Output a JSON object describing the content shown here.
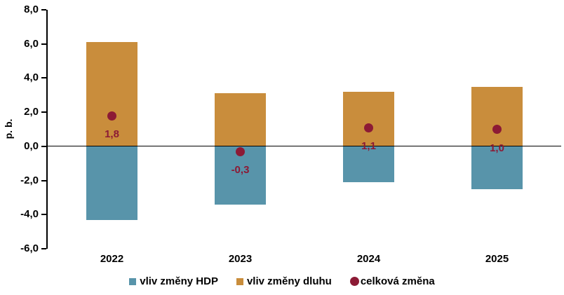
{
  "chart_data": {
    "type": "bar",
    "subtype": "bar-with-points",
    "categories": [
      "2022",
      "2023",
      "2024",
      "2025"
    ],
    "series": [
      {
        "name": "vliv změny HDP",
        "marker": "square",
        "render": "bar",
        "color": "#5894AA",
        "values": [
          -4.3,
          -3.4,
          -2.1,
          -2.5
        ]
      },
      {
        "name": "vliv změny dluhu",
        "marker": "square",
        "render": "bar",
        "color": "#C98D3C",
        "values": [
          6.1,
          3.1,
          3.2,
          3.5
        ]
      },
      {
        "name": "celková změna",
        "marker": "circle",
        "render": "point",
        "color": "#8C1A35",
        "values": [
          1.8,
          -0.3,
          1.1,
          1.0
        ],
        "point_labels": [
          "1,8",
          "-0,3",
          "1,1",
          "1,0"
        ]
      }
    ],
    "title": "",
    "xlabel": "",
    "ylabel": "p. b.",
    "ylim": [
      -6,
      8
    ],
    "ytick_step": 2,
    "ytick_values": [
      8,
      6,
      4,
      2,
      0,
      -2,
      -4,
      -6
    ],
    "ytick_labels": [
      "8,0",
      "6,0",
      "4,0",
      "2,0",
      "0,0",
      "-2,0",
      "-4,0",
      "-6,0"
    ],
    "grid": false,
    "zero_line": true,
    "legend_position": "bottom",
    "axis_color": "#000000",
    "background_color": "#ffffff"
  }
}
